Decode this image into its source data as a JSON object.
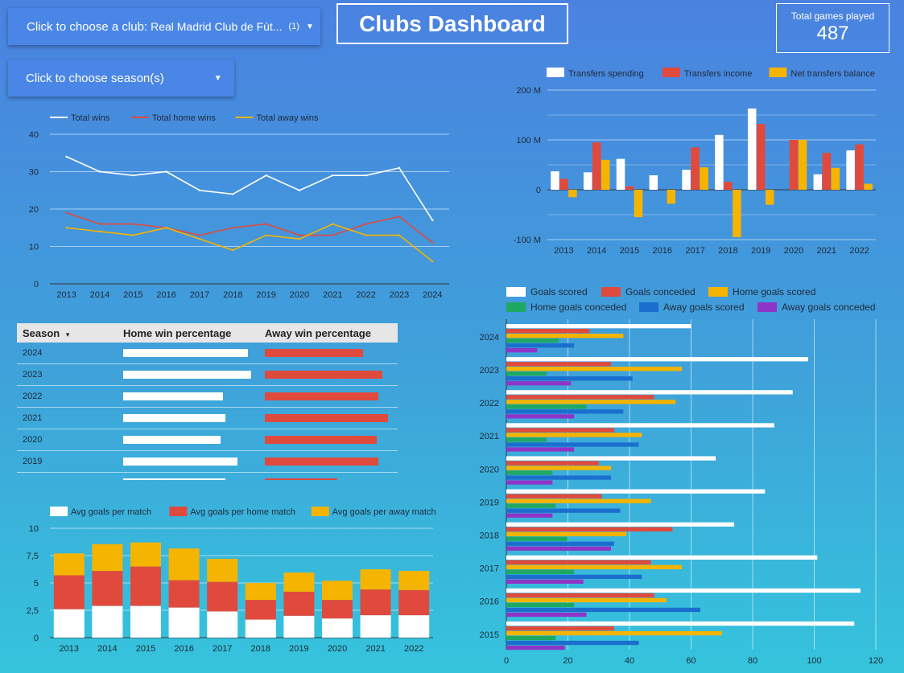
{
  "header": {
    "club_label": "Click to choose a club:",
    "club_value": "Real Madrid Club de Fút...",
    "club_count": "(1)",
    "season_label": "Click to choose season(s)",
    "title": "Clubs Dashboard",
    "kpi_label": "Total games played",
    "kpi_value": "487"
  },
  "colors": {
    "white": "#ffffff",
    "red": "#e04a3c",
    "yellow": "#f5b400",
    "green": "#1ea862",
    "blue": "#1a6fce",
    "purple": "#8e35c7"
  },
  "chart_data": [
    {
      "id": "wins",
      "type": "line",
      "x": [
        2013,
        2014,
        2015,
        2016,
        2017,
        2018,
        2019,
        2020,
        2021,
        2022,
        2023,
        2024
      ],
      "ylim": [
        0,
        40
      ],
      "yticks": [
        0,
        10,
        20,
        30,
        40
      ],
      "series": [
        {
          "name": "Total wins",
          "color": "#ffffff",
          "values": [
            34,
            30,
            29,
            30,
            25,
            24,
            29,
            25,
            29,
            29,
            31,
            17
          ]
        },
        {
          "name": "Total home wins",
          "color": "#e04a3c",
          "values": [
            19,
            16,
            16,
            15,
            13,
            15,
            16,
            13,
            13,
            16,
            18,
            11
          ]
        },
        {
          "name": "Total away wins",
          "color": "#f5b400",
          "values": [
            15,
            14,
            13,
            15,
            12,
            9,
            13,
            12,
            16,
            13,
            13,
            6
          ]
        }
      ],
      "legend": "top-left"
    },
    {
      "id": "transfers",
      "type": "bar",
      "categories": [
        "2013",
        "2014",
        "2015",
        "2016",
        "2017",
        "2018",
        "2019",
        "2020",
        "2021",
        "2022"
      ],
      "ylim": [
        -100,
        200
      ],
      "yticks": [
        -100,
        0,
        100,
        200
      ],
      "ytick_labels": [
        "-100 M",
        "0",
        "100 M",
        "200 M"
      ],
      "series": [
        {
          "name": "Transfers spending",
          "color": "#ffffff",
          "values": [
            37,
            35,
            62,
            29,
            40,
            110,
            163,
            0,
            31,
            79
          ]
        },
        {
          "name": "Transfers income",
          "color": "#e04a3c",
          "values": [
            22,
            95,
            7,
            0,
            85,
            16,
            132,
            100,
            74,
            91
          ]
        },
        {
          "name": "Net transfers balance",
          "color": "#f5b400",
          "values": [
            -15,
            60,
            -55,
            -28,
            45,
            -95,
            -30,
            100,
            44,
            12
          ]
        }
      ],
      "legend": "top"
    },
    {
      "id": "win_pct",
      "type": "table",
      "columns": [
        "Season",
        "Home win percentage",
        "Away win percentage"
      ],
      "sort_indicator": "▾",
      "rows": [
        {
          "season": "2024",
          "home": 0.827,
          "away": 0.622
        },
        {
          "season": "2023",
          "home": 0.846,
          "away": 0.745
        },
        {
          "season": "2022",
          "home": 0.66,
          "away": 0.719
        },
        {
          "season": "2021",
          "home": 0.676,
          "away": 0.781
        },
        {
          "season": "2020",
          "home": 0.644,
          "away": 0.709
        },
        {
          "season": "2019",
          "home": 0.755,
          "away": 0.719
        }
      ]
    },
    {
      "id": "avg_goals",
      "type": "bar",
      "stacked": true,
      "categories": [
        "2013",
        "2014",
        "2015",
        "2016",
        "2017",
        "2018",
        "2019",
        "2020",
        "2021",
        "2022"
      ],
      "ylim": [
        0,
        10
      ],
      "yticks": [
        0,
        2.5,
        5,
        7.5,
        10
      ],
      "ytick_labels": [
        "0",
        "2,5",
        "5",
        "7,5",
        "10"
      ],
      "series": [
        {
          "name": "Avg goals per match",
          "color": "#ffffff",
          "values": [
            2.6,
            2.9,
            2.9,
            2.75,
            2.4,
            1.65,
            2.0,
            1.75,
            2.05,
            2.05
          ]
        },
        {
          "name": "Avg goals per home match",
          "color": "#e04a3c",
          "values": [
            3.1,
            3.2,
            3.6,
            2.5,
            2.7,
            1.8,
            2.2,
            1.7,
            2.35,
            2.3
          ]
        },
        {
          "name": "Avg goals per away match",
          "color": "#f5b400",
          "values": [
            2.0,
            2.45,
            2.2,
            2.9,
            2.1,
            1.55,
            1.75,
            1.75,
            1.85,
            1.75
          ]
        }
      ],
      "legend": "top"
    },
    {
      "id": "goals",
      "type": "bar",
      "orientation": "horizontal",
      "categories": [
        "2024",
        "2023",
        "2022",
        "2021",
        "2020",
        "2019",
        "2018",
        "2017",
        "2016",
        "2015"
      ],
      "xlim": [
        0,
        120
      ],
      "xticks": [
        0,
        20,
        40,
        60,
        80,
        100,
        120
      ],
      "series": [
        {
          "name": "Goals scored",
          "color": "#ffffff",
          "values": [
            60,
            98,
            93,
            87,
            68,
            84,
            74,
            101,
            115,
            113
          ]
        },
        {
          "name": "Goals conceded",
          "color": "#e04a3c",
          "values": [
            27,
            34,
            48,
            35,
            30,
            31,
            54,
            47,
            48,
            35
          ]
        },
        {
          "name": "Home goals scored",
          "color": "#f5b400",
          "values": [
            38,
            57,
            55,
            44,
            34,
            47,
            39,
            57,
            52,
            70
          ]
        },
        {
          "name": "Home goals conceded",
          "color": "#1ea862",
          "values": [
            17,
            13,
            26,
            13,
            15,
            16,
            20,
            22,
            22,
            16
          ]
        },
        {
          "name": "Away goals scored",
          "color": "#1a6fce",
          "values": [
            22,
            41,
            38,
            43,
            34,
            37,
            35,
            44,
            63,
            43
          ]
        },
        {
          "name": "Away goals conceded",
          "color": "#8e35c7",
          "values": [
            10,
            21,
            22,
            22,
            15,
            15,
            34,
            25,
            26,
            19
          ]
        }
      ],
      "legend": "top"
    }
  ]
}
